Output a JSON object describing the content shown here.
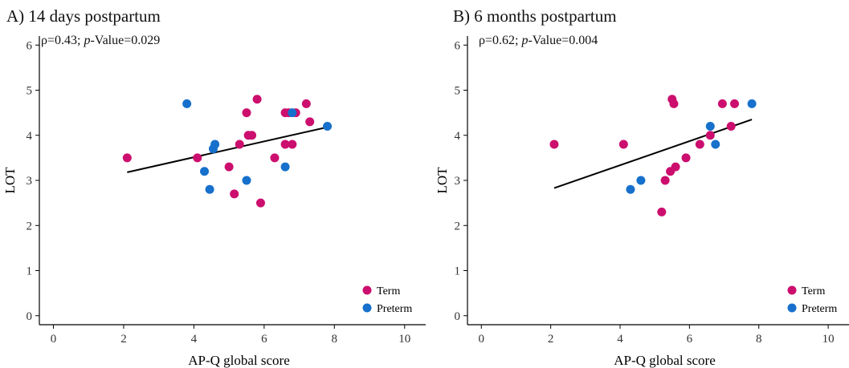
{
  "colors": {
    "term": "#cc0e6e",
    "preterm": "#1670cc",
    "fit": "#000000",
    "axis": "#000000"
  },
  "chart_data": [
    {
      "type": "scatter",
      "panel_title": "A) 14 days postpartum",
      "stat": {
        "rho": "ρ=0.43;",
        "p_prefix": "p",
        "p_value": "-Value=0.029"
      },
      "xlabel": "AP-Q global score",
      "ylabel": "LOT",
      "xlim": [
        -0.4,
        10.6
      ],
      "ylim": [
        -0.2,
        6.2
      ],
      "xticks": [
        0,
        2,
        4,
        6,
        8,
        10
      ],
      "yticks": [
        0,
        1,
        2,
        3,
        4,
        5,
        6
      ],
      "grid": false,
      "legend_position": "bottom-right",
      "series": [
        {
          "name": "Term",
          "color_key": "term",
          "points": [
            [
              2.1,
              3.5
            ],
            [
              4.1,
              3.5
            ],
            [
              5.0,
              3.3
            ],
            [
              5.15,
              2.7
            ],
            [
              5.3,
              3.8
            ],
            [
              5.5,
              4.5
            ],
            [
              5.55,
              4.0
            ],
            [
              5.65,
              4.0
            ],
            [
              5.8,
              4.8
            ],
            [
              5.9,
              2.5
            ],
            [
              6.3,
              3.5
            ],
            [
              6.6,
              3.8
            ],
            [
              6.6,
              4.5
            ],
            [
              6.7,
              4.5
            ],
            [
              6.8,
              3.8
            ],
            [
              6.9,
              4.5
            ],
            [
              7.2,
              4.7
            ],
            [
              7.3,
              4.3
            ]
          ]
        },
        {
          "name": "Preterm",
          "color_key": "preterm",
          "points": [
            [
              3.8,
              4.7
            ],
            [
              4.3,
              3.2
            ],
            [
              4.45,
              2.8
            ],
            [
              4.55,
              3.7
            ],
            [
              4.6,
              3.8
            ],
            [
              5.5,
              3.0
            ],
            [
              6.6,
              3.3
            ],
            [
              6.8,
              4.5
            ],
            [
              7.8,
              4.2
            ]
          ]
        }
      ],
      "fit_line": [
        [
          2.1,
          3.18
        ],
        [
          7.8,
          4.18
        ]
      ]
    },
    {
      "type": "scatter",
      "panel_title": "B) 6 months postpartum",
      "stat": {
        "rho": "ρ=0.62;",
        "p_prefix": "p",
        "p_value": "-Value=0.004"
      },
      "xlabel": "AP-Q global score",
      "ylabel": "LOT",
      "xlim": [
        -0.4,
        10.6
      ],
      "ylim": [
        -0.2,
        6.2
      ],
      "xticks": [
        0,
        2,
        4,
        6,
        8,
        10
      ],
      "yticks": [
        0,
        1,
        2,
        3,
        4,
        5,
        6
      ],
      "grid": false,
      "legend_position": "bottom-right",
      "series": [
        {
          "name": "Term",
          "color_key": "term",
          "points": [
            [
              2.1,
              3.8
            ],
            [
              4.1,
              3.8
            ],
            [
              5.2,
              2.3
            ],
            [
              5.3,
              3.0
            ],
            [
              5.45,
              3.2
            ],
            [
              5.5,
              4.8
            ],
            [
              5.55,
              4.7
            ],
            [
              5.6,
              3.3
            ],
            [
              5.9,
              3.5
            ],
            [
              6.3,
              3.8
            ],
            [
              6.6,
              4.0
            ],
            [
              6.95,
              4.7
            ],
            [
              7.2,
              4.2
            ],
            [
              7.3,
              4.7
            ]
          ]
        },
        {
          "name": "Preterm",
          "color_key": "preterm",
          "points": [
            [
              4.3,
              2.8
            ],
            [
              4.6,
              3.0
            ],
            [
              6.6,
              4.2
            ],
            [
              6.75,
              3.8
            ],
            [
              7.8,
              4.7
            ]
          ]
        }
      ],
      "fit_line": [
        [
          2.1,
          2.83
        ],
        [
          7.8,
          4.35
        ]
      ]
    }
  ]
}
